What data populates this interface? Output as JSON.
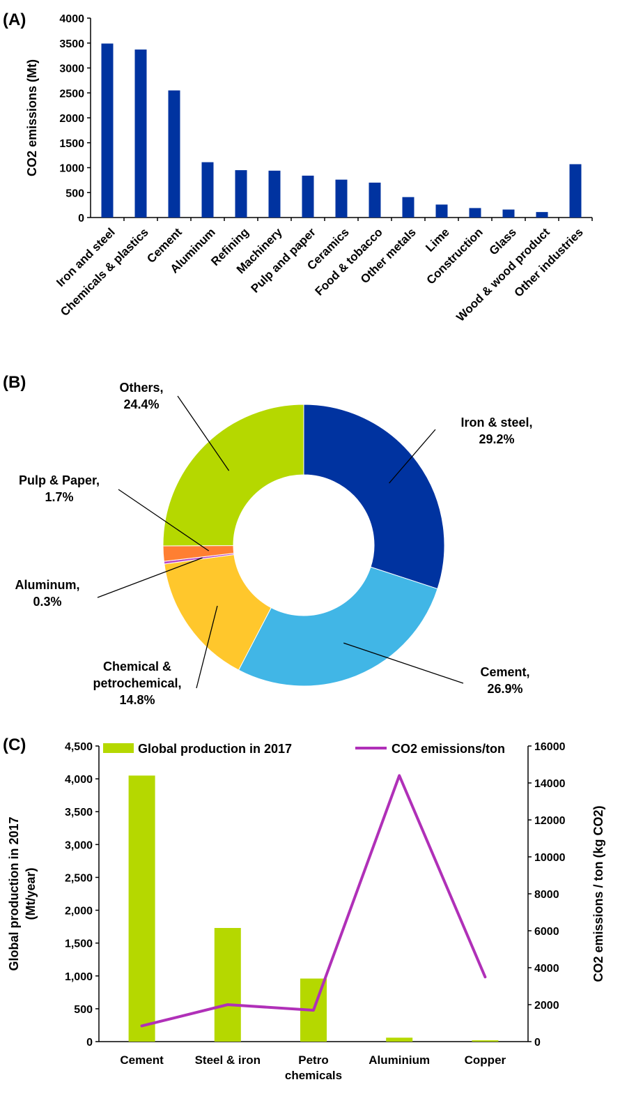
{
  "panels": {
    "a": "(A)",
    "b": "(B)",
    "c": "(C)"
  },
  "chart_data": [
    {
      "type": "bar",
      "ylabel": "CO2 emissions (Mt)",
      "ylim": [
        0,
        4000
      ],
      "yticks": [
        0,
        500,
        1000,
        1500,
        2000,
        2500,
        3000,
        3500,
        4000
      ],
      "categories": [
        "Iron and steel",
        "Chemicals & plastics",
        "Cement",
        "Aluminum",
        "Refining",
        "Machinery",
        "Pulp and paper",
        "Ceramics",
        "Food & tobacco",
        "Other metals",
        "Lime",
        "Construction",
        "Glass",
        "Wood & wood product",
        "Other industries"
      ],
      "values": [
        3490,
        3370,
        2550,
        1110,
        950,
        940,
        840,
        760,
        700,
        410,
        260,
        190,
        160,
        110,
        1070
      ],
      "color": "#0033a0",
      "grid": false
    },
    {
      "type": "pie",
      "style": "donut",
      "labels": [
        "Iron & steel,",
        "Cement,",
        "Chemical & petrochemical,",
        "Aluminum,",
        "Pulp & Paper,",
        "Others,"
      ],
      "label_lines": [
        [
          "Iron & steel,",
          "29.2%"
        ],
        [
          "Cement,",
          "26.9%"
        ],
        [
          "Chemical &",
          "petrochemical,",
          "14.8%"
        ],
        [
          "Aluminum,",
          "0.3%"
        ],
        [
          "Pulp & Paper,",
          "1.7%"
        ],
        [
          "Others,",
          "24.4%"
        ]
      ],
      "values": [
        29.2,
        26.9,
        14.8,
        0.3,
        1.7,
        24.4
      ],
      "colors": [
        "#0033a0",
        "#41b6e6",
        "#ffc72c",
        "#b84bc6",
        "#ff7f32",
        "#b5d800"
      ]
    },
    {
      "type": "bar+line",
      "categories": [
        "Cement",
        "Steel & iron",
        "Petro chemicals",
        "Aluminium",
        "Copper"
      ],
      "category_lines": [
        [
          "Cement"
        ],
        [
          "Steel & iron"
        ],
        [
          "Petro",
          "chemicals"
        ],
        [
          "Aluminium"
        ],
        [
          "Copper"
        ]
      ],
      "ylabel_left_lines": [
        "Global production in 2017",
        "(Mt/year)"
      ],
      "ylabel_right": "CO2 emissions / ton (kg CO2)",
      "ylim_left": [
        0,
        4500
      ],
      "yticks_left": [
        "0",
        "500",
        "1,000",
        "1,500",
        "2,000",
        "2,500",
        "3,000",
        "3,500",
        "4,000",
        "4,500"
      ],
      "ylim_right": [
        0,
        16000
      ],
      "yticks_right": [
        "0",
        "2000",
        "4000",
        "6000",
        "8000",
        "10000",
        "12000",
        "14000",
        "16000"
      ],
      "series": [
        {
          "name": "Global production in 2017",
          "kind": "bar",
          "axis": "left",
          "values": [
            4050,
            1730,
            960,
            60,
            20
          ],
          "color": "#b5d800"
        },
        {
          "name": "CO2 emissions/ton",
          "kind": "line",
          "axis": "right",
          "values": [
            850,
            2000,
            1700,
            14400,
            3500
          ],
          "color": "#b030b8"
        }
      ],
      "legend": "top",
      "grid": false
    }
  ]
}
